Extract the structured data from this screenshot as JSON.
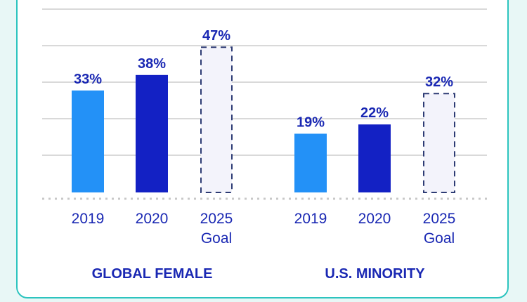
{
  "chart_data": {
    "type": "bar",
    "groups": [
      {
        "name": "GLOBAL FEMALE",
        "bars": [
          {
            "category": "2019",
            "sub": "",
            "value": 33,
            "label": "33%",
            "style": "actual-light"
          },
          {
            "category": "2020",
            "sub": "",
            "value": 38,
            "label": "38%",
            "style": "actual-dark"
          },
          {
            "category": "2025",
            "sub": "Goal",
            "value": 47,
            "label": "47%",
            "style": "goal"
          }
        ]
      },
      {
        "name": "U.S. MINORITY",
        "bars": [
          {
            "category": "2019",
            "sub": "",
            "value": 19,
            "label": "19%",
            "style": "actual-light"
          },
          {
            "category": "2020",
            "sub": "",
            "value": 22,
            "label": "22%",
            "style": "actual-dark"
          },
          {
            "category": "2025",
            "sub": "Goal",
            "value": 32,
            "label": "32%",
            "style": "goal"
          }
        ]
      }
    ],
    "ylim": [
      0,
      47
    ],
    "grid": true,
    "unit": "%"
  },
  "colors": {
    "actual-light": "#2391f7",
    "actual-dark": "#1321c4",
    "goal-fill": "#f3f3fb",
    "goal-stroke": "#2d3b74",
    "label": "#1a28b3",
    "tick": "#1a28b3",
    "grid": "#d9d9d9",
    "baseline": "#c8c8c8",
    "card-border": "#2cc4bf"
  }
}
